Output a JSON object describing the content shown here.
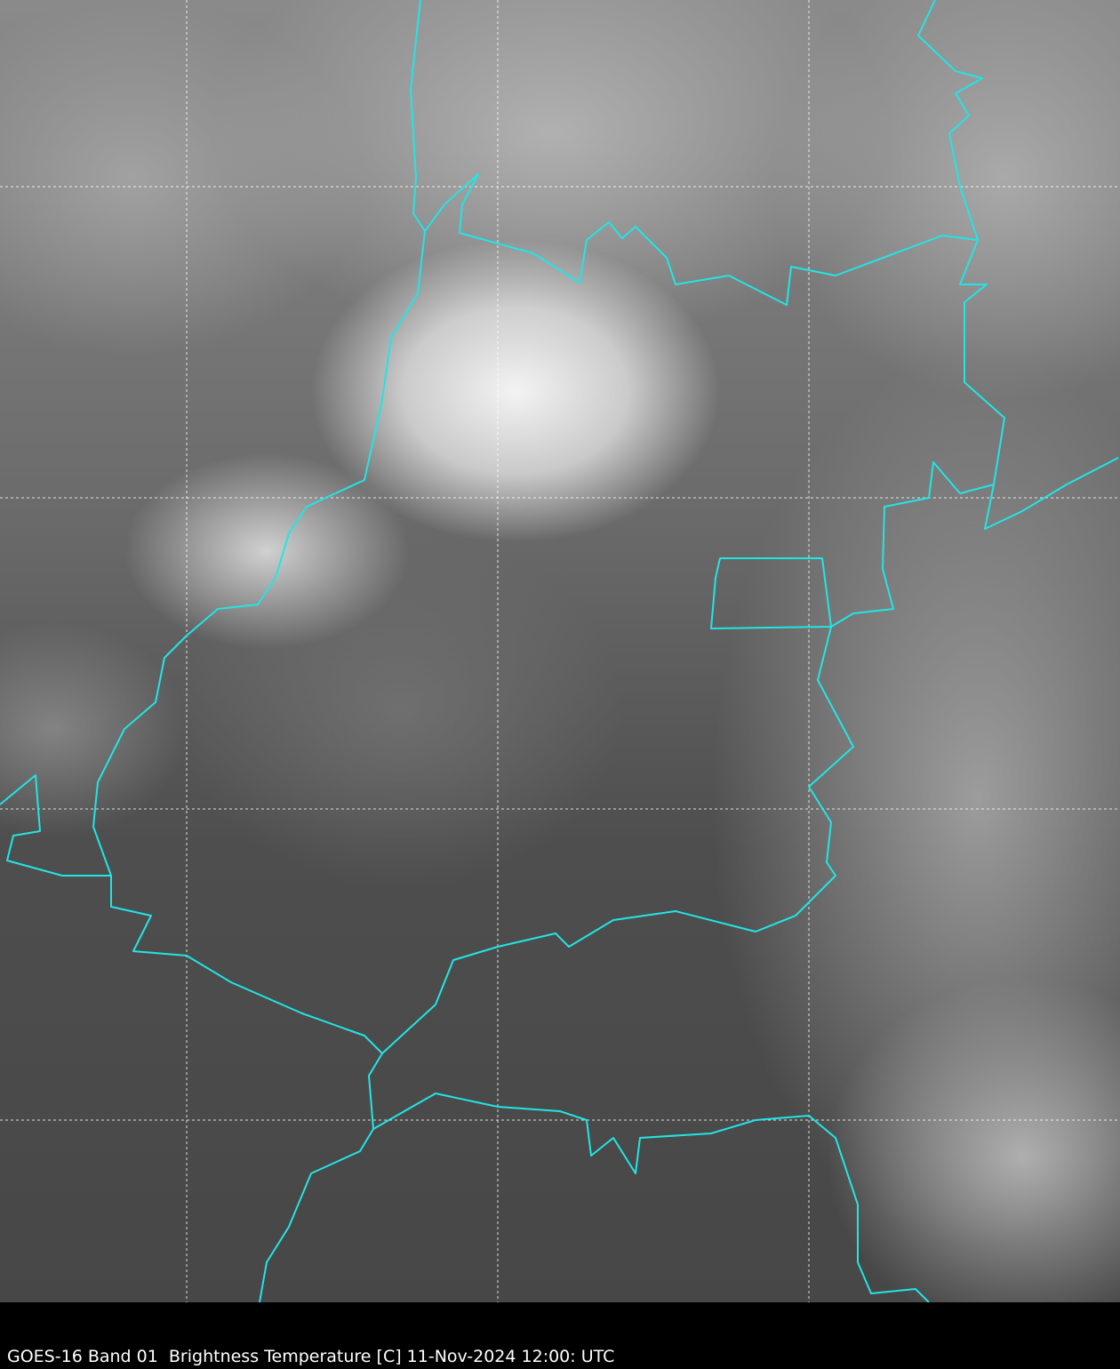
{
  "caption": "GOES-16 Band 01  Brightness Temperature [C] 11-Nov-2024 12:00: UTC",
  "colors": {
    "borders": "#22e5e5",
    "gridlines": "#ffffff",
    "background": "#000000"
  },
  "imagery": {
    "type": "satellite visible imagery",
    "gridlines": true
  }
}
